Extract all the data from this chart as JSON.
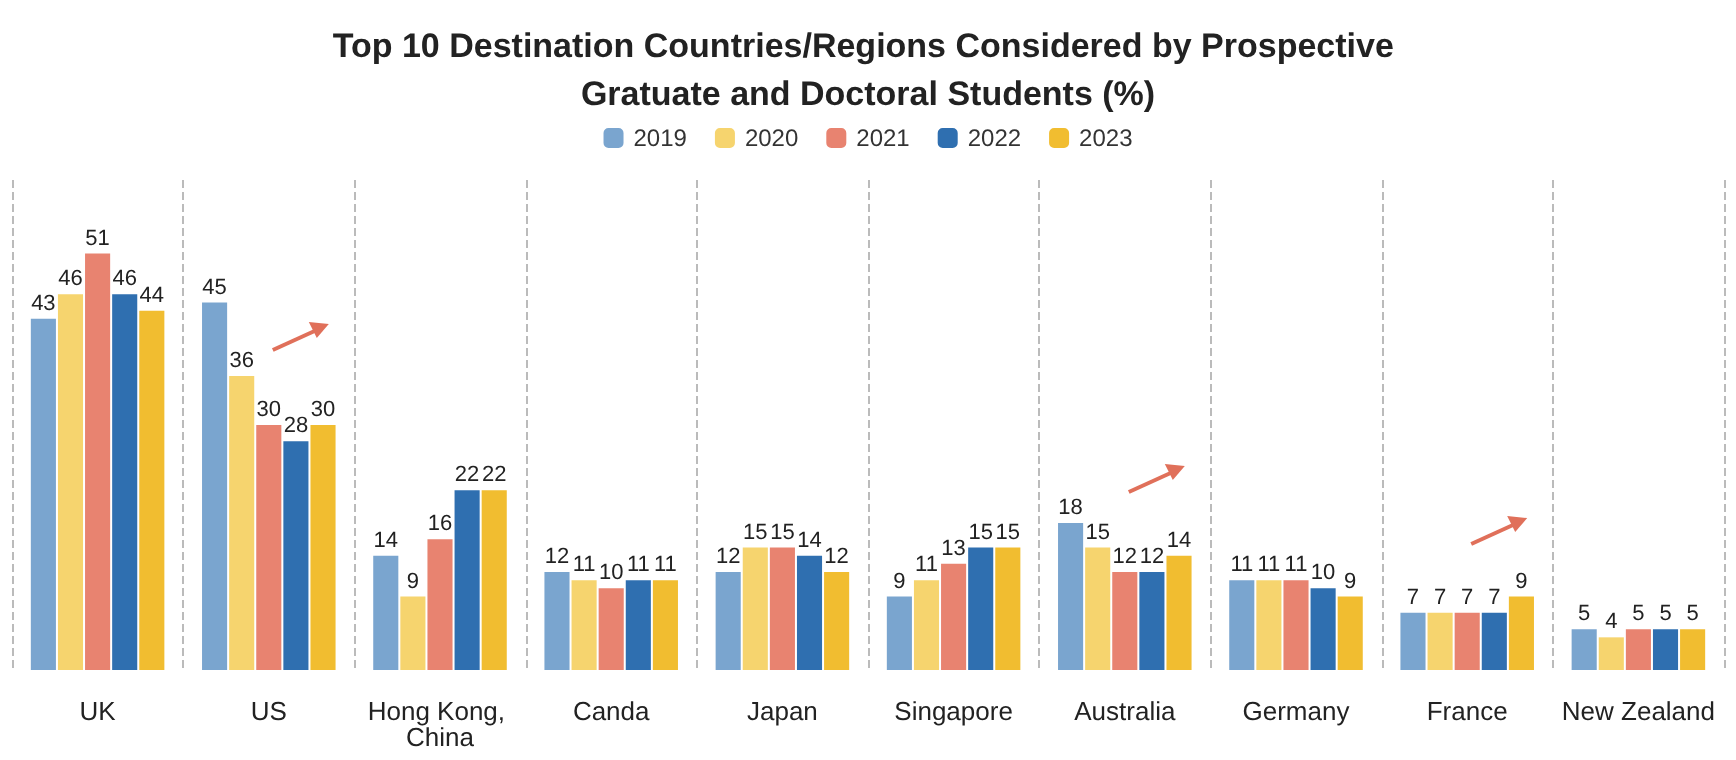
{
  "chart_data": {
    "type": "bar",
    "title": "Top 10 Destination Countries/Regions Considered by Prospective Gratuate and Doctoral Students (%)",
    "categories": [
      "UK",
      "US",
      "Hong Kong, China",
      "Canda",
      "Japan",
      "Singapore",
      "Australia",
      "Germany",
      "France",
      "New Zealand"
    ],
    "series": [
      {
        "name": "2019",
        "color": "#7aa5cf",
        "values": [
          43,
          45,
          14,
          12,
          12,
          9,
          18,
          11,
          7,
          5
        ]
      },
      {
        "name": "2020",
        "color": "#f6d46e",
        "values": [
          46,
          36,
          9,
          11,
          15,
          11,
          15,
          11,
          7,
          4
        ]
      },
      {
        "name": "2021",
        "color": "#e88370",
        "values": [
          51,
          30,
          16,
          10,
          15,
          13,
          12,
          11,
          7,
          5
        ]
      },
      {
        "name": "2022",
        "color": "#2f6fb0",
        "values": [
          46,
          28,
          22,
          11,
          14,
          15,
          12,
          10,
          7,
          5
        ]
      },
      {
        "name": "2023",
        "color": "#f1bd30",
        "values": [
          44,
          30,
          22,
          11,
          12,
          15,
          14,
          9,
          9,
          5
        ]
      }
    ],
    "data_labels": true,
    "legend": "top",
    "grid": "x"
  }
}
